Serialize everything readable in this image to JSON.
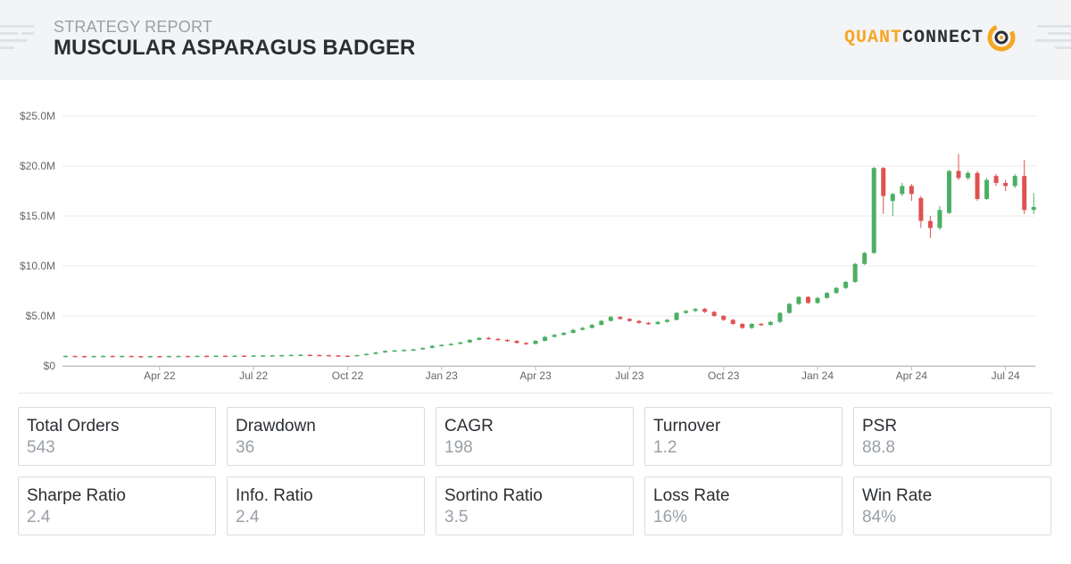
{
  "header": {
    "subtitle": "STRATEGY REPORT",
    "title": "MUSCULAR ASPARAGUS BADGER",
    "logo": {
      "part1": "QUANT",
      "part2": "CONNECT"
    }
  },
  "colors": {
    "up": "#4caf63",
    "down": "#e05252",
    "grid": "#e8e8e8",
    "accent": "#f5a623"
  },
  "chart_data": {
    "type": "candlestick",
    "title": "",
    "xlabel": "",
    "ylabel": "",
    "ylim": [
      0,
      25
    ],
    "yticks": [
      0,
      5,
      10,
      15,
      20,
      25
    ],
    "ytick_labels": [
      "$0",
      "$5.0M",
      "$10.0M",
      "$15.0M",
      "$20.0M",
      "$25.0M"
    ],
    "xticks": [
      {
        "label": "Apr 22",
        "t": 2.0
      },
      {
        "label": "Jul 22",
        "t": 5.0
      },
      {
        "label": "Oct 22",
        "t": 8.0
      },
      {
        "label": "Jan 23",
        "t": 11.0
      },
      {
        "label": "Apr 23",
        "t": 14.0
      },
      {
        "label": "Jul 23",
        "t": 17.0
      },
      {
        "label": "Oct 23",
        "t": 20.0
      },
      {
        "label": "Jan 24",
        "t": 23.0
      },
      {
        "label": "Apr 24",
        "t": 26.0
      },
      {
        "label": "Jul 24",
        "t": 29.0
      }
    ],
    "x_start_t": -1.1,
    "x_end_t": 29.95,
    "candles": [
      [
        -1.0,
        1.0,
        1.0,
        1.05,
        0.98
      ],
      [
        -0.7,
        1.0,
        0.98,
        1.03,
        0.96
      ],
      [
        -0.4,
        0.98,
        0.97,
        1.02,
        0.95
      ],
      [
        -0.1,
        0.97,
        0.99,
        1.03,
        0.95
      ],
      [
        0.2,
        0.99,
        1.0,
        1.04,
        0.97
      ],
      [
        0.5,
        1.0,
        0.98,
        1.04,
        0.96
      ],
      [
        0.8,
        0.98,
        1.0,
        1.04,
        0.96
      ],
      [
        1.1,
        1.0,
        0.97,
        1.03,
        0.95
      ],
      [
        1.4,
        0.97,
        0.96,
        1.0,
        0.93
      ],
      [
        1.7,
        0.96,
        0.98,
        1.02,
        0.94
      ],
      [
        2.0,
        0.98,
        0.97,
        1.0,
        0.94
      ],
      [
        2.3,
        0.97,
        0.99,
        1.03,
        0.95
      ],
      [
        2.6,
        0.99,
        1.0,
        1.04,
        0.97
      ],
      [
        2.9,
        1.0,
        0.99,
        1.03,
        0.96
      ],
      [
        3.2,
        0.99,
        1.01,
        1.04,
        0.97
      ],
      [
        3.5,
        1.01,
        1.0,
        1.04,
        0.98
      ],
      [
        3.8,
        1.0,
        1.02,
        1.06,
        0.98
      ],
      [
        4.1,
        1.02,
        1.01,
        1.05,
        0.99
      ],
      [
        4.4,
        1.01,
        1.03,
        1.07,
        0.99
      ],
      [
        4.7,
        1.03,
        1.02,
        1.06,
        1.0
      ],
      [
        5.0,
        1.02,
        1.04,
        1.08,
        1.0
      ],
      [
        5.3,
        1.04,
        1.05,
        1.09,
        1.02
      ],
      [
        5.6,
        1.05,
        1.06,
        1.1,
        1.03
      ],
      [
        5.9,
        1.06,
        1.08,
        1.12,
        1.04
      ],
      [
        6.2,
        1.08,
        1.1,
        1.14,
        1.06
      ],
      [
        6.5,
        1.1,
        1.12,
        1.16,
        1.08
      ],
      [
        6.8,
        1.12,
        1.1,
        1.15,
        1.07
      ],
      [
        7.1,
        1.1,
        1.08,
        1.13,
        1.05
      ],
      [
        7.4,
        1.08,
        1.05,
        1.11,
        1.02
      ],
      [
        7.7,
        1.05,
        1.02,
        1.09,
        0.99
      ],
      [
        8.0,
        1.02,
        1.0,
        1.06,
        0.97
      ],
      [
        8.3,
        1.0,
        1.08,
        1.12,
        0.98
      ],
      [
        8.6,
        1.08,
        1.2,
        1.25,
        1.05
      ],
      [
        8.9,
        1.2,
        1.35,
        1.4,
        1.15
      ],
      [
        9.2,
        1.35,
        1.5,
        1.56,
        1.3
      ],
      [
        9.5,
        1.5,
        1.55,
        1.6,
        1.45
      ],
      [
        9.8,
        1.55,
        1.6,
        1.66,
        1.5
      ],
      [
        10.1,
        1.6,
        1.65,
        1.72,
        1.55
      ],
      [
        10.4,
        1.65,
        1.8,
        1.86,
        1.6
      ],
      [
        10.7,
        1.8,
        2.0,
        2.08,
        1.75
      ],
      [
        11.0,
        2.0,
        2.1,
        2.18,
        1.95
      ],
      [
        11.3,
        2.1,
        2.2,
        2.28,
        2.05
      ],
      [
        11.6,
        2.2,
        2.35,
        2.42,
        2.15
      ],
      [
        11.9,
        2.35,
        2.6,
        2.68,
        2.3
      ],
      [
        12.2,
        2.6,
        2.8,
        2.88,
        2.55
      ],
      [
        12.5,
        2.8,
        2.7,
        2.9,
        2.62
      ],
      [
        12.8,
        2.7,
        2.6,
        2.78,
        2.52
      ],
      [
        13.1,
        2.6,
        2.5,
        2.68,
        2.42
      ],
      [
        13.4,
        2.5,
        2.3,
        2.58,
        2.22
      ],
      [
        13.7,
        2.3,
        2.2,
        2.38,
        2.1
      ],
      [
        14.0,
        2.2,
        2.5,
        2.6,
        2.15
      ],
      [
        14.3,
        2.5,
        2.9,
        3.0,
        2.45
      ],
      [
        14.6,
        2.9,
        3.1,
        3.2,
        2.85
      ],
      [
        14.9,
        3.1,
        3.3,
        3.4,
        3.05
      ],
      [
        15.2,
        3.3,
        3.6,
        3.7,
        3.25
      ],
      [
        15.5,
        3.6,
        3.8,
        3.9,
        3.55
      ],
      [
        15.8,
        3.8,
        4.1,
        4.2,
        3.75
      ],
      [
        16.1,
        4.1,
        4.5,
        4.6,
        4.05
      ],
      [
        16.4,
        4.5,
        4.9,
        5.0,
        4.45
      ],
      [
        16.7,
        4.9,
        4.7,
        4.98,
        4.6
      ],
      [
        17.0,
        4.7,
        4.5,
        4.78,
        4.4
      ],
      [
        17.3,
        4.5,
        4.3,
        4.6,
        4.2
      ],
      [
        17.6,
        4.3,
        4.2,
        4.4,
        4.1
      ],
      [
        17.9,
        4.2,
        4.4,
        4.5,
        4.1
      ],
      [
        18.2,
        4.4,
        4.6,
        4.7,
        4.3
      ],
      [
        18.5,
        4.6,
        5.3,
        5.4,
        4.55
      ],
      [
        18.8,
        5.3,
        5.5,
        5.6,
        5.2
      ],
      [
        19.1,
        5.5,
        5.7,
        5.8,
        5.4
      ],
      [
        19.4,
        5.7,
        5.4,
        5.8,
        5.3
      ],
      [
        19.7,
        5.4,
        5.0,
        5.5,
        4.9
      ],
      [
        20.0,
        5.0,
        4.6,
        5.1,
        4.5
      ],
      [
        20.3,
        4.6,
        4.2,
        4.7,
        4.1
      ],
      [
        20.6,
        4.2,
        3.8,
        4.3,
        3.7
      ],
      [
        20.9,
        3.8,
        4.2,
        4.3,
        3.7
      ],
      [
        21.2,
        4.2,
        4.1,
        4.3,
        4.0
      ],
      [
        21.5,
        4.1,
        4.4,
        4.5,
        4.0
      ],
      [
        21.8,
        4.4,
        5.3,
        5.4,
        4.3
      ],
      [
        22.1,
        5.3,
        6.2,
        6.3,
        5.2
      ],
      [
        22.4,
        6.2,
        6.9,
        7.0,
        6.1
      ],
      [
        22.7,
        6.9,
        6.3,
        7.0,
        6.2
      ],
      [
        23.0,
        6.3,
        6.8,
        6.9,
        6.2
      ],
      [
        23.3,
        6.8,
        7.3,
        7.4,
        6.7
      ],
      [
        23.6,
        7.3,
        7.8,
        7.9,
        7.2
      ],
      [
        23.9,
        7.8,
        8.4,
        8.5,
        7.7
      ],
      [
        24.2,
        8.4,
        10.2,
        10.3,
        8.3
      ],
      [
        24.5,
        10.2,
        11.3,
        11.4,
        10.1
      ],
      [
        24.8,
        11.3,
        19.8,
        19.9,
        11.2
      ],
      [
        25.1,
        19.8,
        17.0,
        19.9,
        15.2
      ],
      [
        25.4,
        16.5,
        17.2,
        17.3,
        15.0
      ],
      [
        25.7,
        17.2,
        18.0,
        18.3,
        17.0
      ],
      [
        26.0,
        18.0,
        17.2,
        18.2,
        16.5
      ],
      [
        26.3,
        16.8,
        14.5,
        17.0,
        13.8
      ],
      [
        26.6,
        14.5,
        13.8,
        15.0,
        12.8
      ],
      [
        26.9,
        13.8,
        15.6,
        16.0,
        13.6
      ],
      [
        27.2,
        15.3,
        19.5,
        19.6,
        15.2
      ],
      [
        27.5,
        19.5,
        18.8,
        21.2,
        18.6
      ],
      [
        27.8,
        18.8,
        19.3,
        19.5,
        18.6
      ],
      [
        28.1,
        19.3,
        16.7,
        19.5,
        16.5
      ],
      [
        28.4,
        16.7,
        18.6,
        18.8,
        16.6
      ],
      [
        28.7,
        19.0,
        18.3,
        19.2,
        18.0
      ],
      [
        29.0,
        18.3,
        18.0,
        18.6,
        17.5
      ],
      [
        29.3,
        18.0,
        19.0,
        19.2,
        17.8
      ],
      [
        29.6,
        19.0,
        15.6,
        20.6,
        15.2
      ],
      [
        29.9,
        15.6,
        15.9,
        17.3,
        15.2
      ],
      [
        30.2,
        15.9,
        16.6,
        16.8,
        15.8
      ]
    ]
  },
  "stats": [
    {
      "label": "Total Orders",
      "value": "543"
    },
    {
      "label": "Drawdown",
      "value": "36"
    },
    {
      "label": "CAGR",
      "value": "198"
    },
    {
      "label": "Turnover",
      "value": "1.2"
    },
    {
      "label": "PSR",
      "value": "88.8"
    },
    {
      "label": "Sharpe Ratio",
      "value": "2.4"
    },
    {
      "label": "Info. Ratio",
      "value": "2.4"
    },
    {
      "label": "Sortino Ratio",
      "value": "3.5"
    },
    {
      "label": "Loss Rate",
      "value": "16%"
    },
    {
      "label": "Win Rate",
      "value": "84%"
    }
  ]
}
